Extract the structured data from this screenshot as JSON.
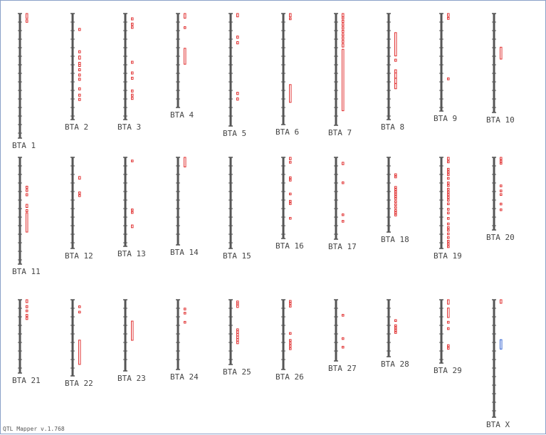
{
  "footer": "QTL Mapper v.1.768",
  "colors": {
    "chromosome": "#555555",
    "qtl": "#e03030",
    "qtl_alt": "#3060d0",
    "label": "#444444"
  },
  "chromosomes": [
    {
      "name": "BTA 1",
      "qtl": [
        {
          "s": 0.0,
          "e": 0.04
        },
        {
          "s": 0.05,
          "e": 0.07
        }
      ]
    },
    {
      "name": "BTA 2",
      "qtl": [
        {
          "s": 0.14,
          "e": 0.16
        },
        {
          "s": 0.35,
          "e": 0.37
        },
        {
          "s": 0.4,
          "e": 0.43
        },
        {
          "s": 0.46,
          "e": 0.48
        },
        {
          "s": 0.48,
          "e": 0.5
        },
        {
          "s": 0.52,
          "e": 0.54
        },
        {
          "s": 0.57,
          "e": 0.59
        },
        {
          "s": 0.61,
          "e": 0.63
        },
        {
          "s": 0.7,
          "e": 0.72
        },
        {
          "s": 0.76,
          "e": 0.78
        },
        {
          "s": 0.8,
          "e": 0.82
        }
      ]
    },
    {
      "name": "BTA 3",
      "qtl": [
        {
          "s": 0.04,
          "e": 0.06
        },
        {
          "s": 0.09,
          "e": 0.11
        },
        {
          "s": 0.12,
          "e": 0.14
        },
        {
          "s": 0.45,
          "e": 0.47
        },
        {
          "s": 0.55,
          "e": 0.57
        },
        {
          "s": 0.6,
          "e": 0.62
        },
        {
          "s": 0.72,
          "e": 0.74
        },
        {
          "s": 0.76,
          "e": 0.78
        },
        {
          "s": 0.79,
          "e": 0.81
        }
      ]
    },
    {
      "name": "BTA 4",
      "qtl": [
        {
          "s": 0.0,
          "e": 0.05
        },
        {
          "s": 0.14,
          "e": 0.16
        },
        {
          "s": 0.37,
          "e": 0.54
        }
      ]
    },
    {
      "name": "BTA 5",
      "qtl": [
        {
          "s": 0.0,
          "e": 0.03
        },
        {
          "s": 0.2,
          "e": 0.22
        },
        {
          "s": 0.25,
          "e": 0.27
        },
        {
          "s": 0.7,
          "e": 0.72
        },
        {
          "s": 0.75,
          "e": 0.77
        }
      ]
    },
    {
      "name": "BTA 6",
      "qtl": [
        {
          "s": 0.0,
          "e": 0.03
        },
        {
          "s": 0.04,
          "e": 0.05
        },
        {
          "s": 0.64,
          "e": 0.8
        }
      ]
    },
    {
      "name": "BTA 7",
      "qtl": [
        {
          "s": 0.0,
          "e": 0.03
        },
        {
          "s": 0.03,
          "e": 0.05
        },
        {
          "s": 0.06,
          "e": 0.08
        },
        {
          "s": 0.09,
          "e": 0.11
        },
        {
          "s": 0.12,
          "e": 0.14
        },
        {
          "s": 0.15,
          "e": 0.17
        },
        {
          "s": 0.18,
          "e": 0.2
        },
        {
          "s": 0.21,
          "e": 0.23
        },
        {
          "s": 0.24,
          "e": 0.26
        },
        {
          "s": 0.27,
          "e": 0.3
        },
        {
          "s": 0.32,
          "e": 0.87
        }
      ]
    },
    {
      "name": "BTA 8",
      "qtl": [
        {
          "s": 0.18,
          "e": 0.4
        },
        {
          "s": 0.43,
          "e": 0.45
        },
        {
          "s": 0.53,
          "e": 0.56
        },
        {
          "s": 0.56,
          "e": 0.61
        },
        {
          "s": 0.61,
          "e": 0.66
        },
        {
          "s": 0.66,
          "e": 0.71
        }
      ]
    },
    {
      "name": "BTA 9",
      "qtl": [
        {
          "s": 0.0,
          "e": 0.03
        },
        {
          "s": 0.04,
          "e": 0.06
        },
        {
          "s": 0.66,
          "e": 0.68
        }
      ]
    },
    {
      "name": "BTA 10",
      "qtl": [
        {
          "s": 0.34,
          "e": 0.46
        }
      ]
    },
    {
      "name": "BTA 11",
      "qtl": [
        {
          "s": 0.27,
          "e": 0.29
        },
        {
          "s": 0.3,
          "e": 0.32
        },
        {
          "s": 0.34,
          "e": 0.36
        },
        {
          "s": 0.44,
          "e": 0.47
        },
        {
          "s": 0.49,
          "e": 0.51
        },
        {
          "s": 0.52,
          "e": 0.7
        }
      ]
    },
    {
      "name": "BTA 12",
      "qtl": [
        {
          "s": 0.21,
          "e": 0.24
        },
        {
          "s": 0.38,
          "e": 0.4
        },
        {
          "s": 0.41,
          "e": 0.43
        }
      ]
    },
    {
      "name": "BTA 13",
      "qtl": [
        {
          "s": 0.03,
          "e": 0.05
        },
        {
          "s": 0.58,
          "e": 0.6
        },
        {
          "s": 0.61,
          "e": 0.63
        },
        {
          "s": 0.76,
          "e": 0.79
        }
      ]
    },
    {
      "name": "BTA 14",
      "qtl": [
        {
          "s": 0.0,
          "e": 0.11
        }
      ]
    },
    {
      "name": "BTA 15",
      "qtl": []
    },
    {
      "name": "BTA 16",
      "qtl": [
        {
          "s": 0.0,
          "e": 0.03
        },
        {
          "s": 0.05,
          "e": 0.07
        },
        {
          "s": 0.24,
          "e": 0.26
        },
        {
          "s": 0.27,
          "e": 0.29
        },
        {
          "s": 0.44,
          "e": 0.46
        },
        {
          "s": 0.53,
          "e": 0.55
        },
        {
          "s": 0.56,
          "e": 0.58
        },
        {
          "s": 0.74,
          "e": 0.76
        }
      ]
    },
    {
      "name": "BTA 17",
      "qtl": [
        {
          "s": 0.06,
          "e": 0.09
        },
        {
          "s": 0.3,
          "e": 0.32
        },
        {
          "s": 0.69,
          "e": 0.71
        },
        {
          "s": 0.77,
          "e": 0.79
        }
      ]
    },
    {
      "name": "BTA 18",
      "qtl": [
        {
          "s": 0.22,
          "e": 0.24
        },
        {
          "s": 0.25,
          "e": 0.27
        },
        {
          "s": 0.39,
          "e": 0.41
        },
        {
          "s": 0.42,
          "e": 0.44
        },
        {
          "s": 0.45,
          "e": 0.47
        },
        {
          "s": 0.48,
          "e": 0.5
        },
        {
          "s": 0.51,
          "e": 0.53
        },
        {
          "s": 0.54,
          "e": 0.56
        },
        {
          "s": 0.58,
          "e": 0.6
        },
        {
          "s": 0.62,
          "e": 0.64
        },
        {
          "s": 0.66,
          "e": 0.68
        },
        {
          "s": 0.7,
          "e": 0.72
        },
        {
          "s": 0.73,
          "e": 0.75
        },
        {
          "s": 0.76,
          "e": 0.78
        }
      ]
    },
    {
      "name": "BTA 19",
      "qtl": [
        {
          "s": 0.0,
          "e": 0.03
        },
        {
          "s": 0.04,
          "e": 0.06
        },
        {
          "s": 0.12,
          "e": 0.14
        },
        {
          "s": 0.15,
          "e": 0.17
        },
        {
          "s": 0.18,
          "e": 0.2
        },
        {
          "s": 0.22,
          "e": 0.24
        },
        {
          "s": 0.27,
          "e": 0.29
        },
        {
          "s": 0.3,
          "e": 0.32
        },
        {
          "s": 0.34,
          "e": 0.36
        },
        {
          "s": 0.37,
          "e": 0.39
        },
        {
          "s": 0.4,
          "e": 0.42
        },
        {
          "s": 0.43,
          "e": 0.45
        },
        {
          "s": 0.46,
          "e": 0.48
        },
        {
          "s": 0.5,
          "e": 0.52
        },
        {
          "s": 0.56,
          "e": 0.58
        },
        {
          "s": 0.6,
          "e": 0.62
        },
        {
          "s": 0.66,
          "e": 0.68
        },
        {
          "s": 0.72,
          "e": 0.74
        },
        {
          "s": 0.76,
          "e": 0.78
        },
        {
          "s": 0.79,
          "e": 0.81
        },
        {
          "s": 0.83,
          "e": 0.85
        },
        {
          "s": 0.87,
          "e": 0.89
        },
        {
          "s": 0.91,
          "e": 0.93
        },
        {
          "s": 0.94,
          "e": 0.96
        },
        {
          "s": 0.97,
          "e": 0.99
        }
      ]
    },
    {
      "name": "BTA 20",
      "qtl": [
        {
          "s": 0.0,
          "e": 0.03
        },
        {
          "s": 0.04,
          "e": 0.06
        },
        {
          "s": 0.07,
          "e": 0.09
        },
        {
          "s": 0.38,
          "e": 0.4
        },
        {
          "s": 0.45,
          "e": 0.47
        },
        {
          "s": 0.5,
          "e": 0.52
        },
        {
          "s": 0.63,
          "e": 0.65
        },
        {
          "s": 0.71,
          "e": 0.73
        }
      ]
    },
    {
      "name": "BTA 21",
      "qtl": [
        {
          "s": 0.0,
          "e": 0.04
        },
        {
          "s": 0.08,
          "e": 0.11
        },
        {
          "s": 0.14,
          "e": 0.16
        },
        {
          "s": 0.2,
          "e": 0.23
        },
        {
          "s": 0.24,
          "e": 0.27
        }
      ]
    },
    {
      "name": "BTA 22",
      "qtl": [
        {
          "s": 0.08,
          "e": 0.1
        },
        {
          "s": 0.15,
          "e": 0.17
        },
        {
          "s": 0.53,
          "e": 0.85
        }
      ]
    },
    {
      "name": "BTA 23",
      "qtl": [
        {
          "s": 0.3,
          "e": 0.57
        }
      ]
    },
    {
      "name": "BTA 24",
      "qtl": [
        {
          "s": 0.12,
          "e": 0.14
        },
        {
          "s": 0.18,
          "e": 0.2
        },
        {
          "s": 0.31,
          "e": 0.33
        }
      ]
    },
    {
      "name": "BTA 25",
      "qtl": [
        {
          "s": 0.02,
          "e": 0.05
        },
        {
          "s": 0.05,
          "e": 0.08
        },
        {
          "s": 0.08,
          "e": 0.12
        },
        {
          "s": 0.45,
          "e": 0.48
        },
        {
          "s": 0.48,
          "e": 0.52
        },
        {
          "s": 0.52,
          "e": 0.56
        },
        {
          "s": 0.56,
          "e": 0.6
        },
        {
          "s": 0.6,
          "e": 0.64
        },
        {
          "s": 0.64,
          "e": 0.68
        }
      ]
    },
    {
      "name": "BTA 26",
      "qtl": [
        {
          "s": 0.01,
          "e": 0.03
        },
        {
          "s": 0.04,
          "e": 0.06
        },
        {
          "s": 0.08,
          "e": 0.1
        },
        {
          "s": 0.47,
          "e": 0.49
        },
        {
          "s": 0.57,
          "e": 0.59
        },
        {
          "s": 0.61,
          "e": 0.63
        },
        {
          "s": 0.65,
          "e": 0.67
        },
        {
          "s": 0.69,
          "e": 0.71
        }
      ]
    },
    {
      "name": "BTA 27",
      "qtl": [
        {
          "s": 0.24,
          "e": 0.26
        },
        {
          "s": 0.62,
          "e": 0.64
        },
        {
          "s": 0.76,
          "e": 0.78
        }
      ]
    },
    {
      "name": "BTA 28",
      "qtl": [
        {
          "s": 0.35,
          "e": 0.37
        },
        {
          "s": 0.44,
          "e": 0.46
        },
        {
          "s": 0.48,
          "e": 0.5
        },
        {
          "s": 0.52,
          "e": 0.54
        },
        {
          "s": 0.56,
          "e": 0.58
        }
      ]
    },
    {
      "name": "BTA 29",
      "qtl": [
        {
          "s": 0.0,
          "e": 0.07
        },
        {
          "s": 0.13,
          "e": 0.28
        },
        {
          "s": 0.34,
          "e": 0.37
        },
        {
          "s": 0.44,
          "e": 0.47
        },
        {
          "s": 0.71,
          "e": 0.74
        },
        {
          "s": 0.75,
          "e": 0.78
        }
      ]
    },
    {
      "name": "BTA X",
      "qtl": [
        {
          "s": 0.0,
          "e": 0.03
        },
        {
          "s": 0.34,
          "e": 0.42,
          "alt": true
        }
      ]
    }
  ]
}
